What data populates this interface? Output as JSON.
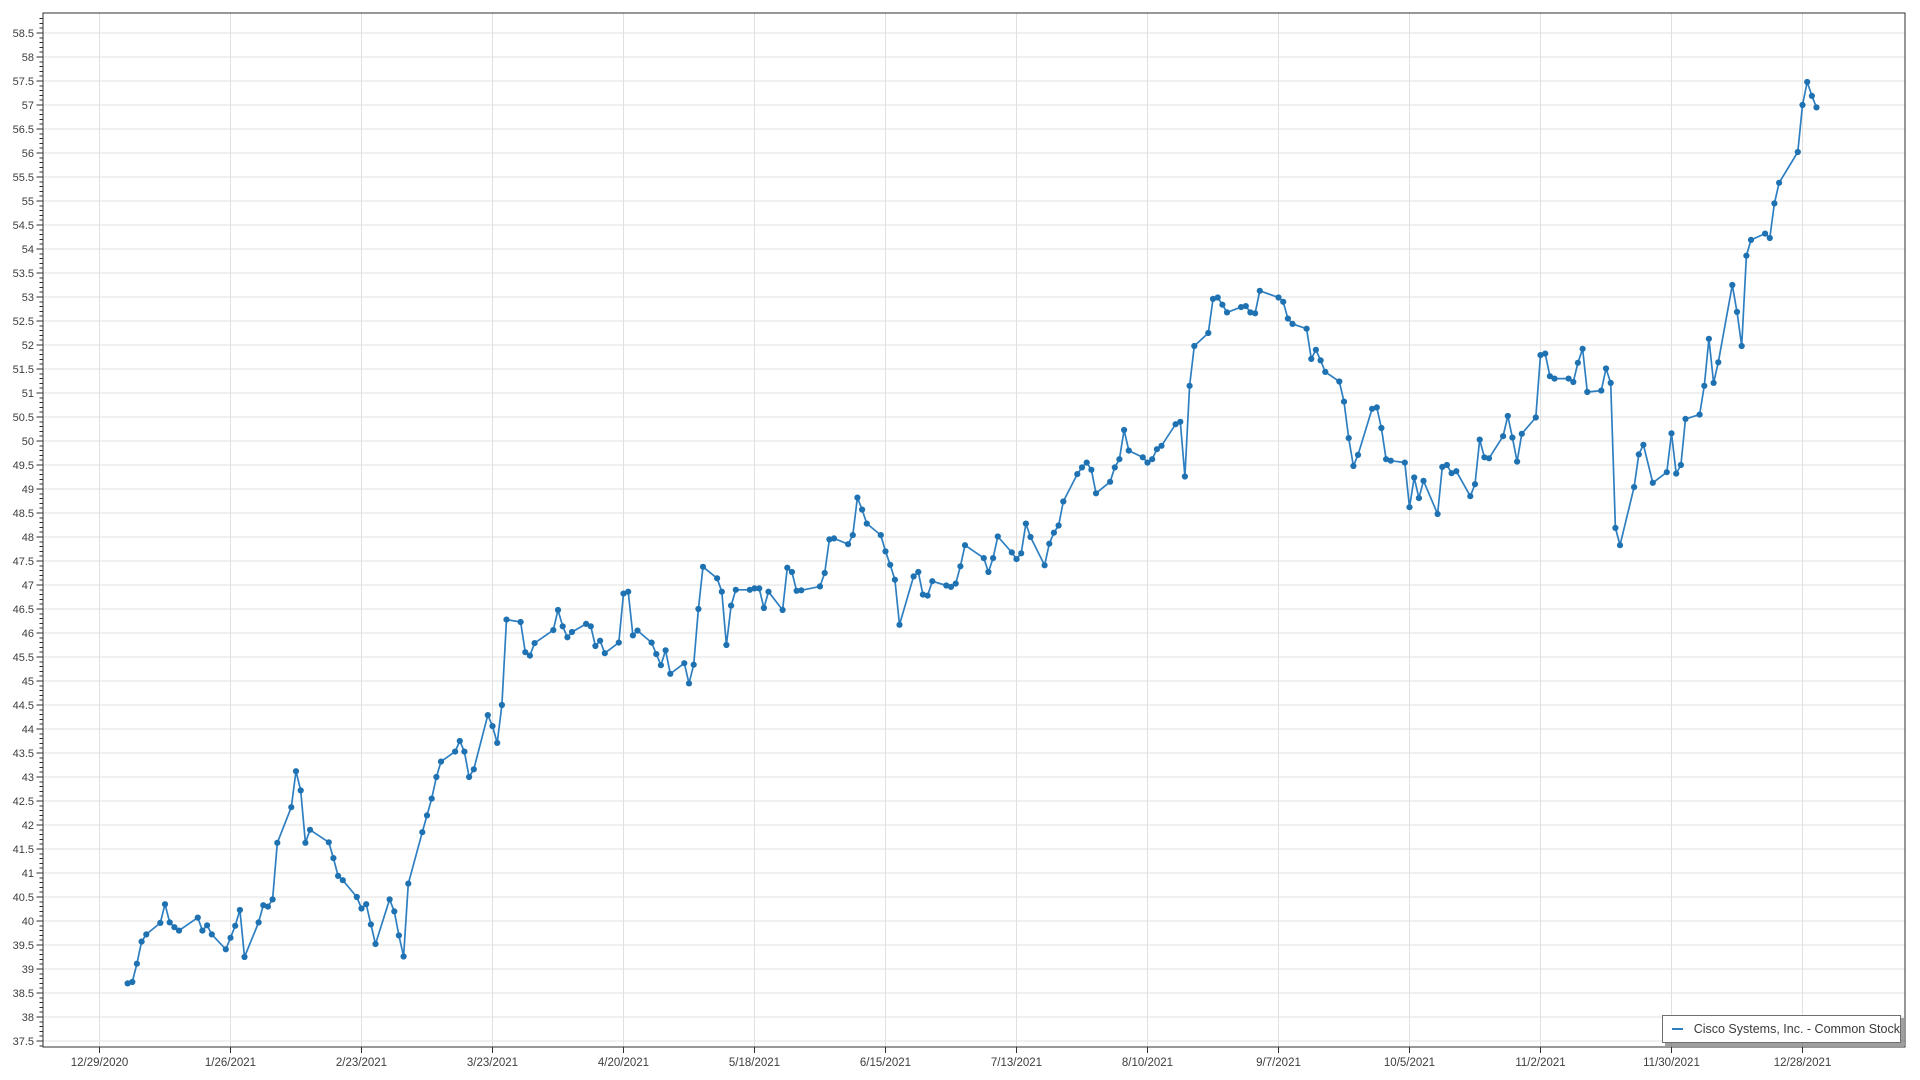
{
  "chart_data": {
    "type": "line",
    "title": "",
    "xlabel": "",
    "ylabel": "",
    "legend": {
      "label": "Cisco Systems, Inc. - Common Stock",
      "position": "bottom-right"
    },
    "grid": {
      "horizontal": "every 0.5",
      "vertical": "every month tick"
    },
    "y_axis": {
      "label_min": 37.5,
      "label_max": 58.5,
      "major_step": 0.5,
      "minor_step": 0.1,
      "ylim": [
        37.38,
        58.92
      ]
    },
    "y_tick_labels": [
      "58.5",
      "58",
      "57.5",
      "57",
      "56.5",
      "56",
      "55.5",
      "55",
      "54.5",
      "54",
      "53.5",
      "53",
      "52.5",
      "52",
      "51.5",
      "51",
      "50.5",
      "50",
      "49.5",
      "49",
      "48.5",
      "48",
      "47.5",
      "47",
      "46.5",
      "46",
      "45.5",
      "45",
      "44.5",
      "44",
      "43.5",
      "43",
      "42.5",
      "42",
      "41.5",
      "41",
      "40.5",
      "40",
      "39.5",
      "39",
      "38.5",
      "38",
      "37.5"
    ],
    "x_tick_labels": [
      "12/29/2020",
      "1/26/2021",
      "2/23/2021",
      "3/23/2021",
      "4/20/2021",
      "5/18/2021",
      "6/15/2021",
      "7/13/2021",
      "8/10/2021",
      "9/7/2021",
      "10/5/2021",
      "11/2/2021",
      "11/30/2021",
      "12/28/2021"
    ],
    "series": [
      {
        "name": "Cisco Systems, Inc. - Common Stock",
        "marker": "circle",
        "dates": [
          "1/4/2021",
          "1/5/2021",
          "1/6/2021",
          "1/7/2021",
          "1/8/2021",
          "1/11/2021",
          "1/12/2021",
          "1/13/2021",
          "1/14/2021",
          "1/15/2021",
          "1/19/2021",
          "1/20/2021",
          "1/21/2021",
          "1/22/2021",
          "1/25/2021",
          "1/26/2021",
          "1/27/2021",
          "1/28/2021",
          "1/29/2021",
          "2/1/2021",
          "2/2/2021",
          "2/3/2021",
          "2/4/2021",
          "2/5/2021",
          "2/8/2021",
          "2/9/2021",
          "2/10/2021",
          "2/11/2021",
          "2/12/2021",
          "2/16/2021",
          "2/17/2021",
          "2/18/2021",
          "2/19/2021",
          "2/22/2021",
          "2/23/2021",
          "2/24/2021",
          "2/25/2021",
          "2/26/2021",
          "3/1/2021",
          "3/2/2021",
          "3/3/2021",
          "3/4/2021",
          "3/5/2021",
          "3/8/2021",
          "3/9/2021",
          "3/10/2021",
          "3/11/2021",
          "3/12/2021",
          "3/15/2021",
          "3/16/2021",
          "3/17/2021",
          "3/18/2021",
          "3/19/2021",
          "3/22/2021",
          "3/23/2021",
          "3/24/2021",
          "3/25/2021",
          "3/26/2021",
          "3/29/2021",
          "3/30/2021",
          "3/31/2021",
          "4/1/2021",
          "4/5/2021",
          "4/6/2021",
          "4/7/2021",
          "4/8/2021",
          "4/9/2021",
          "4/12/2021",
          "4/13/2021",
          "4/14/2021",
          "4/15/2021",
          "4/16/2021",
          "4/19/2021",
          "4/20/2021",
          "4/21/2021",
          "4/22/2021",
          "4/23/2021",
          "4/26/2021",
          "4/27/2021",
          "4/28/2021",
          "4/29/2021",
          "4/30/2021",
          "5/3/2021",
          "5/4/2021",
          "5/5/2021",
          "5/6/2021",
          "5/7/2021",
          "5/10/2021",
          "5/11/2021",
          "5/12/2021",
          "5/13/2021",
          "5/14/2021",
          "5/17/2021",
          "5/18/2021",
          "5/19/2021",
          "5/20/2021",
          "5/21/2021",
          "5/24/2021",
          "5/25/2021",
          "5/26/2021",
          "5/27/2021",
          "5/28/2021",
          "6/1/2021",
          "6/2/2021",
          "6/3/2021",
          "6/4/2021",
          "6/7/2021",
          "6/8/2021",
          "6/9/2021",
          "6/10/2021",
          "6/11/2021",
          "6/14/2021",
          "6/15/2021",
          "6/16/2021",
          "6/17/2021",
          "6/18/2021",
          "6/21/2021",
          "6/22/2021",
          "6/23/2021",
          "6/24/2021",
          "6/25/2021",
          "6/28/2021",
          "6/29/2021",
          "6/30/2021",
          "7/1/2021",
          "7/2/2021",
          "7/6/2021",
          "7/7/2021",
          "7/8/2021",
          "7/9/2021",
          "7/12/2021",
          "7/13/2021",
          "7/14/2021",
          "7/15/2021",
          "7/16/2021",
          "7/19/2021",
          "7/20/2021",
          "7/21/2021",
          "7/22/2021",
          "7/23/2021",
          "7/26/2021",
          "7/27/2021",
          "7/28/2021",
          "7/29/2021",
          "7/30/2021",
          "8/2/2021",
          "8/3/2021",
          "8/4/2021",
          "8/5/2021",
          "8/6/2021",
          "8/9/2021",
          "8/10/2021",
          "8/11/2021",
          "8/12/2021",
          "8/13/2021",
          "8/16/2021",
          "8/17/2021",
          "8/18/2021",
          "8/19/2021",
          "8/20/2021",
          "8/23/2021",
          "8/24/2021",
          "8/25/2021",
          "8/26/2021",
          "8/27/2021",
          "8/30/2021",
          "8/31/2021",
          "9/1/2021",
          "9/2/2021",
          "9/3/2021",
          "9/7/2021",
          "9/8/2021",
          "9/9/2021",
          "9/10/2021",
          "9/13/2021",
          "9/14/2021",
          "9/15/2021",
          "9/16/2021",
          "9/17/2021",
          "9/20/2021",
          "9/21/2021",
          "9/22/2021",
          "9/23/2021",
          "9/24/2021",
          "9/27/2021",
          "9/28/2021",
          "9/29/2021",
          "9/30/2021",
          "10/1/2021",
          "10/4/2021",
          "10/5/2021",
          "10/6/2021",
          "10/7/2021",
          "10/8/2021",
          "10/11/2021",
          "10/12/2021",
          "10/13/2021",
          "10/14/2021",
          "10/15/2021",
          "10/18/2021",
          "10/19/2021",
          "10/20/2021",
          "10/21/2021",
          "10/22/2021",
          "10/25/2021",
          "10/26/2021",
          "10/27/2021",
          "10/28/2021",
          "10/29/2021",
          "11/1/2021",
          "11/2/2021",
          "11/3/2021",
          "11/4/2021",
          "11/5/2021",
          "11/8/2021",
          "11/9/2021",
          "11/10/2021",
          "11/11/2021",
          "11/12/2021",
          "11/15/2021",
          "11/16/2021",
          "11/17/2021",
          "11/18/2021",
          "11/19/2021",
          "11/22/2021",
          "11/23/2021",
          "11/24/2021",
          "11/26/2021",
          "11/29/2021",
          "11/30/2021",
          "12/1/2021",
          "12/2/2021",
          "12/3/2021",
          "12/6/2021",
          "12/7/2021",
          "12/8/2021",
          "12/9/2021",
          "12/10/2021",
          "12/13/2021",
          "12/14/2021",
          "12/15/2021",
          "12/16/2021",
          "12/17/2021",
          "12/20/2021",
          "12/21/2021",
          "12/22/2021",
          "12/23/2021",
          "12/27/2021",
          "12/28/2021",
          "12/29/2021",
          "12/30/2021",
          "12/31/2021"
        ],
        "values": [
          38.7,
          38.73,
          39.11,
          39.57,
          39.72,
          39.96,
          40.35,
          39.97,
          39.87,
          39.8,
          40.07,
          39.8,
          39.91,
          39.72,
          39.41,
          39.65,
          39.9,
          40.23,
          39.25,
          39.97,
          40.33,
          40.3,
          40.45,
          41.63,
          42.37,
          43.12,
          42.72,
          41.63,
          41.9,
          41.64,
          41.31,
          40.94,
          40.85,
          40.5,
          40.26,
          40.35,
          39.93,
          39.52,
          40.45,
          40.2,
          39.7,
          39.26,
          40.78,
          41.85,
          42.2,
          42.55,
          43.0,
          43.32,
          43.53,
          43.75,
          43.53,
          43.0,
          43.16,
          44.29,
          44.06,
          43.71,
          44.5,
          46.28,
          46.23,
          45.6,
          45.53,
          45.79,
          46.06,
          46.48,
          46.14,
          45.91,
          46.02,
          46.19,
          46.14,
          45.73,
          45.84,
          45.58,
          45.8,
          46.82,
          46.86,
          45.95,
          46.05,
          45.8,
          45.56,
          45.33,
          45.64,
          45.15,
          45.37,
          44.95,
          45.34,
          46.5,
          47.38,
          47.14,
          46.86,
          45.75,
          46.57,
          46.9,
          46.9,
          46.93,
          46.93,
          46.52,
          46.86,
          46.48,
          47.36,
          47.27,
          46.88,
          46.89,
          46.97,
          47.25,
          47.95,
          47.97,
          47.85,
          48.04,
          48.82,
          48.57,
          48.28,
          48.04,
          47.7,
          47.42,
          47.11,
          46.17,
          47.18,
          47.27,
          46.8,
          46.78,
          47.08,
          46.99,
          46.96,
          47.03,
          47.39,
          47.83,
          47.56,
          47.27,
          47.56,
          48.01,
          47.68,
          47.54,
          47.66,
          48.28,
          48.0,
          47.41,
          47.86,
          48.09,
          48.24,
          48.74,
          49.31,
          49.45,
          49.55,
          49.4,
          48.91,
          49.15,
          49.45,
          49.62,
          50.23,
          49.8,
          49.66,
          49.55,
          49.62,
          49.83,
          49.9,
          50.35,
          50.4,
          49.26,
          51.15,
          51.98,
          52.25,
          52.96,
          52.99,
          52.84,
          52.68,
          52.79,
          52.81,
          52.68,
          52.66,
          53.13,
          52.99,
          52.9,
          52.55,
          52.44,
          52.34,
          51.71,
          51.9,
          51.68,
          51.44,
          51.24,
          50.82,
          50.06,
          49.48,
          49.71,
          50.67,
          50.7,
          50.27,
          49.62,
          49.59,
          49.55,
          48.62,
          49.24,
          48.81,
          49.17,
          48.48,
          49.46,
          49.5,
          49.33,
          49.37,
          48.85,
          49.1,
          50.03,
          49.66,
          49.64,
          50.1,
          50.52,
          50.07,
          49.57,
          50.15,
          50.49,
          51.79,
          51.82,
          51.35,
          51.3,
          51.3,
          51.23,
          51.63,
          51.92,
          51.02,
          51.05,
          51.51,
          51.21,
          48.19,
          47.83,
          49.04,
          49.72,
          49.92,
          49.13,
          49.35,
          50.16,
          49.32,
          49.5,
          50.46,
          50.55,
          51.15,
          52.13,
          51.21,
          51.64,
          53.25,
          52.69,
          51.98,
          53.86,
          54.19,
          54.32,
          54.23,
          54.95,
          55.38,
          56.02,
          57.0,
          57.48,
          57.19,
          56.95
        ]
      }
    ]
  },
  "colors": {
    "line": "#2e7fc1",
    "marker": "#1f72b2",
    "grid": "#e0e0e0",
    "axis": "#2f2f2f",
    "tick_label": "#3d3d3d",
    "background": "#ffffff",
    "legend_border": "#6f6f6f",
    "legend_text": "#3a3a3a"
  }
}
